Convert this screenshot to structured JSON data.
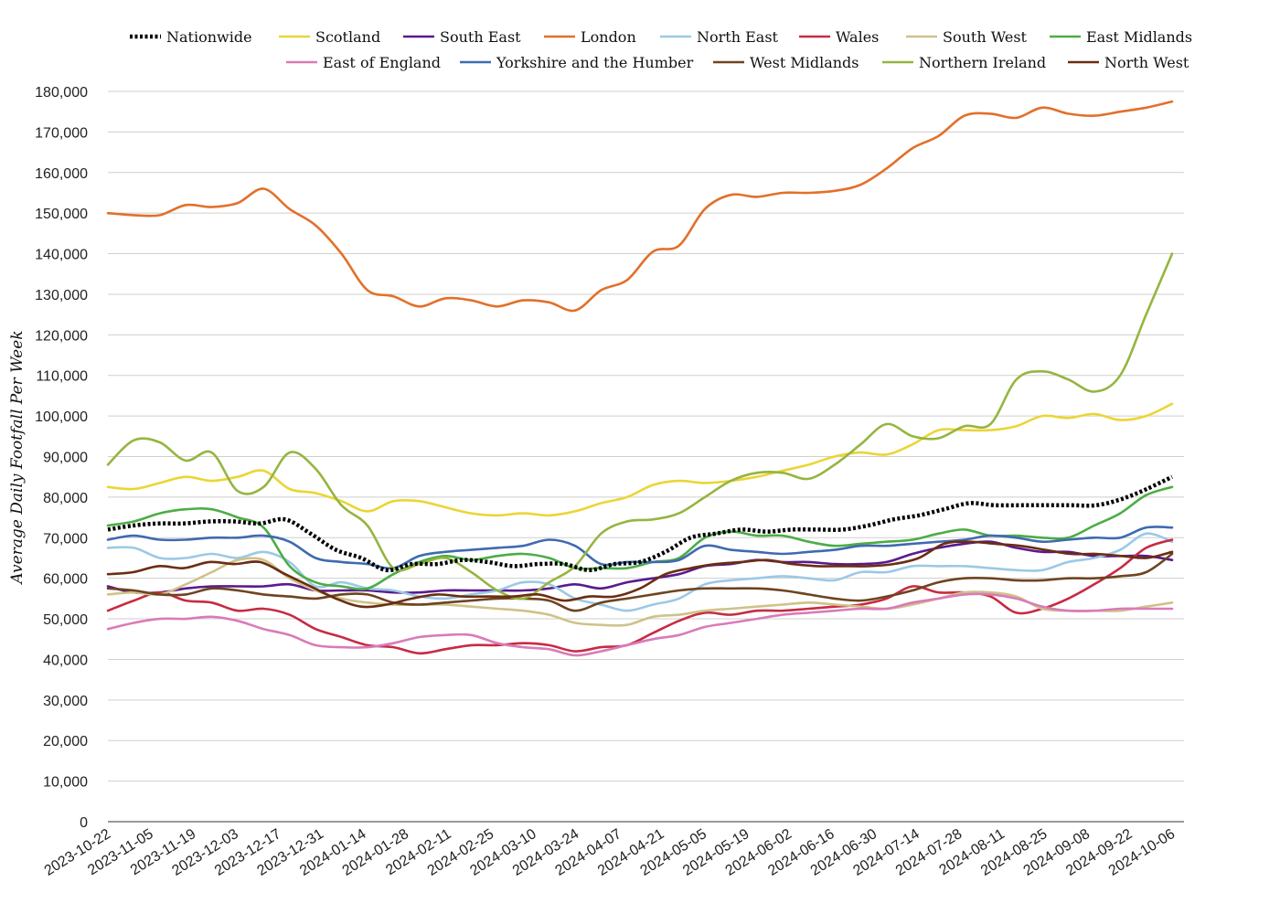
{
  "chart_data": {
    "type": "line",
    "ylabel": "Average Daily Footfall Per Week",
    "xlabel": "",
    "ylim": [
      0,
      180000
    ],
    "y_ticks": [
      0,
      10000,
      20000,
      30000,
      40000,
      50000,
      60000,
      70000,
      80000,
      90000,
      100000,
      110000,
      120000,
      130000,
      140000,
      150000,
      160000,
      170000,
      180000
    ],
    "y_tick_labels": [
      "0",
      "10,000",
      "20,000",
      "30,000",
      "40,000",
      "50,000",
      "60,000",
      "70,000",
      "80,000",
      "90,000",
      "100,000",
      "110,000",
      "120,000",
      "130,000",
      "140,000",
      "150,000",
      "160,000",
      "170,000",
      "180,000"
    ],
    "x_tick_labels": [
      "2023-10-22",
      "2023-11-05",
      "2023-11-19",
      "2023-12-03",
      "2023-12-17",
      "2023-12-31",
      "2024-01-14",
      "2024-01-28",
      "2024-02-11",
      "2024-02-25",
      "2024-03-10",
      "2024-03-24",
      "2024-04-07",
      "2024-04-21",
      "2024-05-05",
      "2024-05-19",
      "2024-06-02",
      "2024-06-16",
      "2024-06-30",
      "2024-07-14",
      "2024-07-28",
      "2024-08-11",
      "2024-08-25",
      "2024-09-08",
      "2024-09-22",
      "2024-10-06"
    ],
    "grid": true,
    "legend_position": "top",
    "series": [
      {
        "name": "Nationwide",
        "color": "#000000",
        "dashed": true,
        "values": [
          72000,
          73000,
          73500,
          73500,
          74000,
          74000,
          73500,
          74500,
          71000,
          67000,
          65000,
          62000,
          63500,
          63500,
          64500,
          64000,
          63000,
          63500,
          63500,
          62000,
          63500,
          64000,
          66500,
          70000,
          71000,
          72000,
          71500,
          72000,
          72000,
          72000,
          73000,
          74500,
          75500,
          77000,
          78500,
          78000,
          78000,
          78000,
          78000,
          78000,
          79500,
          82000,
          85000
        ]
      },
      {
        "name": "Scotland",
        "color": "#ebd535",
        "values": [
          82500,
          82000,
          83500,
          85000,
          84000,
          85000,
          86500,
          82000,
          81000,
          79000,
          76500,
          79000,
          79000,
          77500,
          76000,
          75500,
          76000,
          75500,
          76500,
          78500,
          80000,
          83000,
          84000,
          83500,
          84000,
          85000,
          86500,
          88000,
          90000,
          91000,
          90500,
          93000,
          96500,
          96500,
          96500,
          97500,
          100000,
          99500,
          100500,
          99000,
          100000,
          103000
        ]
      },
      {
        "name": "South East",
        "color": "#5a1a8e",
        "values": [
          58000,
          56500,
          56500,
          57500,
          58000,
          58000,
          58000,
          58500,
          57000,
          57000,
          57000,
          56500,
          56500,
          57000,
          57000,
          57000,
          57000,
          57500,
          58500,
          57500,
          59000,
          60000,
          61000,
          63000,
          63500,
          64500,
          64000,
          64000,
          63500,
          63500,
          64000,
          66000,
          67500,
          68500,
          69000,
          67500,
          66500,
          66500,
          65500,
          65500,
          65500,
          64500
        ]
      },
      {
        "name": "London",
        "color": "#e2702a",
        "values": [
          150000,
          149500,
          149500,
          152000,
          151500,
          152500,
          156000,
          151000,
          147000,
          140000,
          131000,
          129500,
          127000,
          129000,
          128500,
          127000,
          128500,
          128000,
          126000,
          131000,
          133500,
          140500,
          142000,
          151000,
          154500,
          154000,
          155000,
          155000,
          155500,
          157000,
          161000,
          166000,
          169000,
          174000,
          174500,
          173500,
          176000,
          174500,
          174000,
          175000,
          176000,
          177500
        ]
      },
      {
        "name": "North East",
        "color": "#9bc9e6",
        "values": [
          67500,
          67500,
          65000,
          65000,
          66000,
          65000,
          66500,
          64000,
          58000,
          59000,
          57500,
          57000,
          55500,
          55000,
          56000,
          57000,
          59000,
          58500,
          55000,
          53500,
          52000,
          53500,
          55000,
          58500,
          59500,
          60000,
          60500,
          60000,
          59500,
          61500,
          61500,
          63000,
          63000,
          63000,
          62500,
          62000,
          62000,
          64000,
          65000,
          67000,
          71000,
          69000
        ]
      },
      {
        "name": "Wales",
        "color": "#c72b43",
        "values": [
          52000,
          54500,
          56500,
          54500,
          54000,
          52000,
          52500,
          51000,
          47500,
          45500,
          43500,
          43000,
          41500,
          42500,
          43500,
          43500,
          44000,
          43500,
          42000,
          43000,
          43500,
          46500,
          49500,
          51500,
          51000,
          52000,
          52000,
          52500,
          53000,
          53500,
          55000,
          58000,
          56500,
          56500,
          55500,
          51500,
          52500,
          55000,
          58500,
          62500,
          67500,
          69500
        ]
      },
      {
        "name": "South West",
        "color": "#cfc28a",
        "values": [
          56000,
          56500,
          56000,
          58500,
          61500,
          64500,
          64500,
          60000,
          57000,
          55000,
          54000,
          53500,
          53500,
          53500,
          53000,
          52500,
          52000,
          51000,
          49000,
          48500,
          48500,
          50500,
          51000,
          52000,
          52500,
          53000,
          53500,
          54000,
          53500,
          53000,
          52500,
          53500,
          55000,
          56500,
          56500,
          55500,
          52500,
          52000,
          52000,
          52000,
          53000,
          54000
        ]
      },
      {
        "name": "East Midlands",
        "color": "#4cad45",
        "values": [
          73000,
          74000,
          76000,
          77000,
          77000,
          75000,
          72500,
          63000,
          59000,
          58000,
          57500,
          61000,
          64000,
          65500,
          64500,
          65500,
          66000,
          65000,
          62500,
          62500,
          62500,
          64000,
          65000,
          70000,
          71500,
          70500,
          70500,
          69000,
          68000,
          68500,
          69000,
          69500,
          71000,
          72000,
          70500,
          70500,
          70000,
          70000,
          73000,
          76000,
          80500,
          82500
        ]
      },
      {
        "name": "East of England",
        "color": "#d97bb8",
        "values": [
          47500,
          49000,
          50000,
          50000,
          50500,
          49500,
          47500,
          46000,
          43500,
          43000,
          43000,
          44000,
          45500,
          46000,
          46000,
          44000,
          43000,
          42500,
          41000,
          42000,
          43500,
          45000,
          46000,
          48000,
          49000,
          50000,
          51000,
          51500,
          52000,
          52500,
          52500,
          54000,
          55000,
          56000,
          56000,
          55000,
          53000,
          52000,
          52000,
          52500,
          52500,
          52500
        ]
      },
      {
        "name": "Yorkshire and the Humber",
        "color": "#3f6ab0",
        "values": [
          69500,
          70500,
          69500,
          69500,
          70000,
          70000,
          70500,
          69000,
          65000,
          64000,
          63500,
          62500,
          65500,
          66500,
          67000,
          67500,
          68000,
          69500,
          68000,
          63500,
          64000,
          64000,
          64500,
          68000,
          67000,
          66500,
          66000,
          66500,
          67000,
          68000,
          68000,
          68500,
          69000,
          69500,
          70500,
          70000,
          69000,
          69500,
          70000,
          70000,
          72500,
          72500
        ]
      },
      {
        "name": "West Midlands",
        "color": "#6e4420",
        "values": [
          57500,
          57000,
          56000,
          56000,
          57500,
          57000,
          56000,
          55500,
          55000,
          56000,
          56000,
          54000,
          53500,
          54000,
          54500,
          55000,
          55000,
          54500,
          52000,
          54000,
          55000,
          56000,
          57000,
          57500,
          57500,
          57500,
          57000,
          56000,
          55000,
          54500,
          55500,
          57000,
          59000,
          60000,
          60000,
          59500,
          59500,
          60000,
          60000,
          60500,
          61500,
          66000
        ]
      },
      {
        "name": "Northern Ireland",
        "color": "#95b540",
        "values": [
          88000,
          94000,
          93500,
          89000,
          91000,
          81500,
          82500,
          91000,
          87000,
          78000,
          73000,
          62500,
          63500,
          65000,
          61500,
          57000,
          55000,
          59000,
          63000,
          71000,
          74000,
          74500,
          76000,
          80000,
          84000,
          86000,
          86000,
          84500,
          88000,
          93000,
          98000,
          95000,
          94500,
          97500,
          98000,
          109000,
          111000,
          109000,
          106000,
          110000,
          125000,
          140000
        ]
      },
      {
        "name": "North West",
        "color": "#6b2d12",
        "values": [
          61000,
          61500,
          63000,
          62500,
          64000,
          63500,
          64000,
          61000,
          58000,
          55000,
          53000,
          53500,
          55000,
          56000,
          55500,
          55500,
          55500,
          56000,
          54500,
          55500,
          55500,
          57500,
          61000,
          62500,
          63500,
          64000,
          64500,
          63500,
          63000,
          63000,
          63000,
          63500,
          65000,
          68500,
          69000,
          68500,
          68000,
          67000,
          66000,
          66000,
          65500,
          65000,
          66500
        ]
      }
    ]
  }
}
